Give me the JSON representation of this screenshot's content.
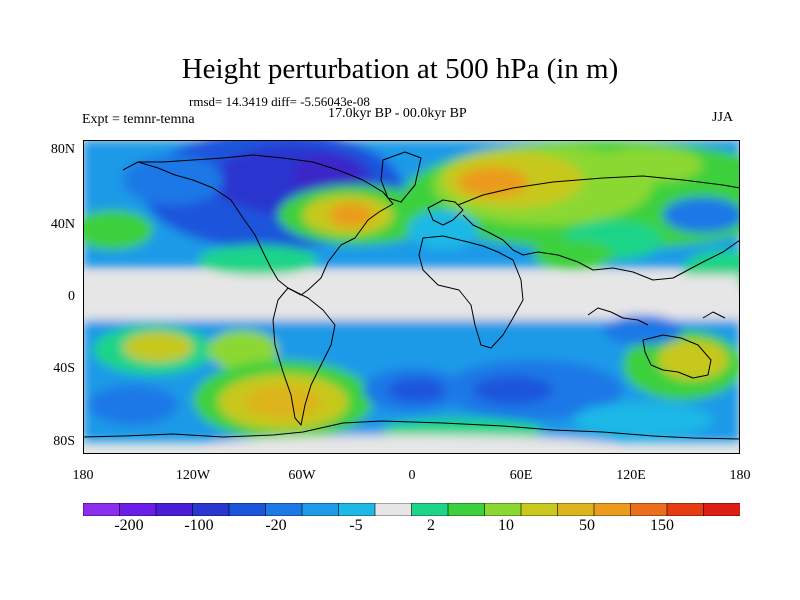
{
  "title": "Height perturbation at 500 hPa (in m)",
  "stats": "rmsd= 14.3419 diff= -5.56043e-08",
  "period": "17.0kyr BP - 00.0kyr BP",
  "experiment": "Expt = temnr-temna",
  "season": "JJA",
  "axes": {
    "y_ticks": [
      "80N",
      "40N",
      "0",
      "40S",
      "80S"
    ],
    "x_ticks": [
      "180",
      "120W",
      "60W",
      "0",
      "60E",
      "120E",
      "180"
    ]
  },
  "colorbar": {
    "colors": [
      "#8c2ef0",
      "#6a1fe6",
      "#4a1ed8",
      "#2b35cf",
      "#1b55dc",
      "#1e78e6",
      "#1e9ae8",
      "#1eb8e6",
      "#e6e6e6",
      "#1ed488",
      "#3cd03c",
      "#8cd832",
      "#c8c81e",
      "#dcb41e",
      "#eb9b1e",
      "#eb6e1e",
      "#e63c14",
      "#dc1e14"
    ],
    "labels": [
      "-200",
      "-100",
      "-20",
      "-5",
      "2",
      "10",
      "50",
      "150"
    ]
  },
  "palette": {
    "neutral": "#e6e6e6",
    "coast": "#000000"
  }
}
